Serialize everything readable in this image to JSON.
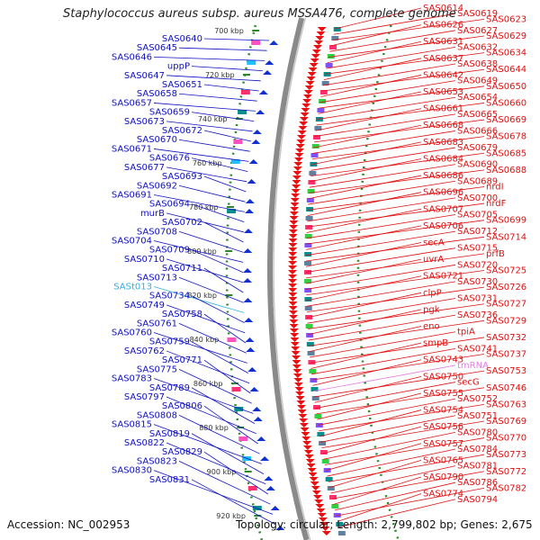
{
  "title": "Staphylococcus aureus subsp. aureus MSSA476, complete genome",
  "footer": {
    "accession": "Accession: NC_002953",
    "topology": "Topology: circular; Length: 2,799,802 bp; Genes: 2,675"
  },
  "colors": {
    "forward_label": "#1010c0",
    "reverse_label": "#e01010",
    "trna_label": "#30b0e0",
    "rrna_label": "#e080e0",
    "backbone": "#8a8a8a",
    "tick": "#2a8a2a"
  },
  "ticks": [
    "700 kbp",
    "720 kbp",
    "740 kbp",
    "760 kbp",
    "780 kbp",
    "800 kbp",
    "820 kbp",
    "840 kbp",
    "860 kbp",
    "880 kbp",
    "900 kbp",
    "920 kbp"
  ],
  "left_labels": [
    "SAS0640",
    "SAS0645",
    "SAS0646",
    "uppP",
    "SAS0647",
    "SAS0651",
    "SAS0658",
    "SAS0657",
    "SAS0659",
    "SAS0673",
    "SAS0672",
    "SAS0670",
    "SAS0671",
    "SAS0676",
    "SAS0677",
    "SAS0693",
    "SAS0692",
    "SAS0691",
    "SAS0694",
    "murB",
    "SAS0702",
    "SAS0708",
    "SAS0704",
    "SAS0709",
    "SAS0710",
    "SAS0711",
    "SAS0713",
    "SASt013",
    "SAS0734",
    "SAS0749",
    "SAS0758",
    "SAS0761",
    "SAS0760",
    "SAS0759",
    "SAS0762",
    "SAS0771",
    "SAS0775",
    "SAS0783",
    "SAS0789",
    "SAS0797",
    "SAS0806",
    "SAS0808",
    "SAS0815",
    "SAS0819",
    "SAS0822",
    "SAS0829",
    "SAS0823",
    "SAS0830",
    "SAS0831"
  ],
  "right_labels": [
    "SAS0614",
    "SAS0619",
    "SAS0623",
    "SAS0626",
    "SAS0627",
    "SAS0629",
    "SAS0631",
    "SAS0632",
    "SAS0634",
    "SAS0637",
    "SAS0638",
    "SAS0644",
    "SAS0642",
    "SAS0649",
    "SAS0650",
    "SAS0653",
    "SAS0654",
    "SAS0660",
    "SAS0661",
    "SAS0665",
    "SAS0669",
    "SAS0668",
    "SAS0666",
    "SAS0678",
    "SAS0683",
    "SAS0679",
    "SAS0685",
    "SAS0684",
    "SAS0690",
    "SAS0688",
    "SAS0686",
    "SAS0689",
    "nrdI",
    "SAS0696",
    "SAS0700",
    "nrdF",
    "SAS0707",
    "SAS0705",
    "SAS0699",
    "SAS0706",
    "SAS0712",
    "SAS0714",
    "secA",
    "SAS0715",
    "prfB",
    "uvrA",
    "SAS0720",
    "SAS0725",
    "SAS0721",
    "SAS0730",
    "SAS0726",
    "clpP",
    "SAS0731",
    "SAS0727",
    "pgk",
    "SAS0736",
    "SAS0729",
    "eno",
    "tpiA",
    "SAS0732",
    "smpB",
    "SAS0741",
    "SAS0737",
    "SAS0743",
    "tmRNA",
    "SAS0753",
    "SAS0750",
    "secG",
    "SAS0746",
    "SAS0755",
    "SAS0752",
    "SAS0763",
    "SAS0754",
    "SAS0751",
    "SAS0769",
    "SAS0756",
    "SAS0780",
    "SAS0770",
    "SAS0757",
    "SAS0784",
    "SAS0773",
    "SAS0765",
    "SAS0781",
    "SAS0772",
    "SAS0790",
    "SAS0786",
    "SAS0782",
    "SAS0774",
    "SAS0794"
  ]
}
